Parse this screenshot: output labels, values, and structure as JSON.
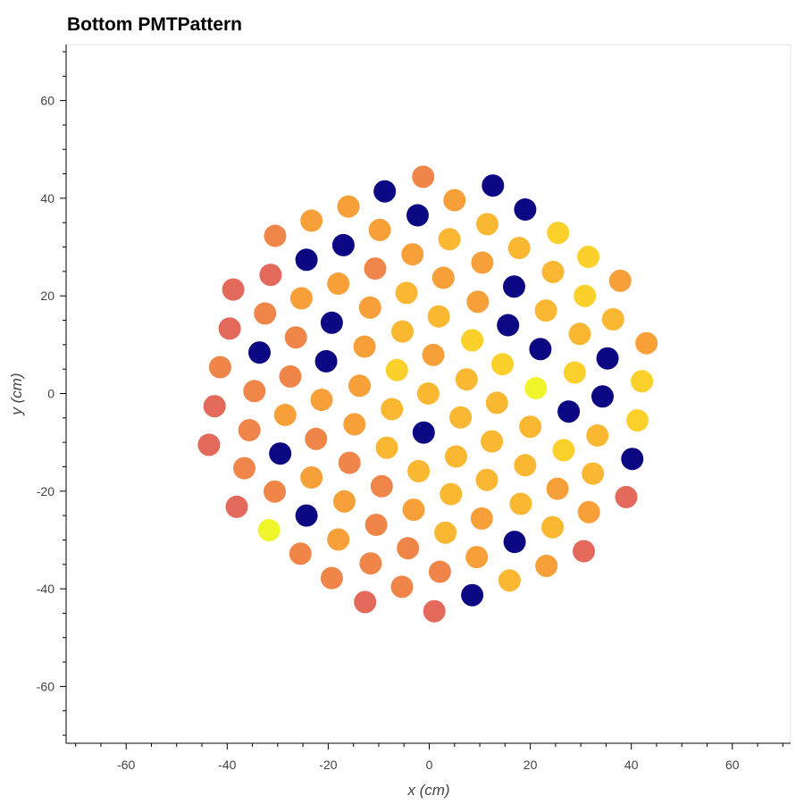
{
  "chart_data": {
    "type": "scatter",
    "title": "Bottom PMTPattern",
    "xlabel": "x (cm)",
    "ylabel": "y (cm)",
    "xlim": [
      -72,
      72
    ],
    "ylim": [
      -72,
      72
    ],
    "xticks": [
      -60,
      -40,
      -20,
      0,
      20,
      40,
      60
    ],
    "yticks": [
      -60,
      -40,
      -20,
      0,
      20,
      40,
      60
    ],
    "grid": false,
    "legend": "none",
    "colors": {
      "c1": "#e3695a",
      "c2": "#f08549",
      "c3": "#f7a03a",
      "c4": "#fab732",
      "c5": "#fbd02b",
      "c6": "#f0f52b",
      "dark": "#0c0783"
    },
    "points": [
      {
        "x": -1.2,
        "y": 44.4,
        "c": "c2"
      },
      {
        "x": -8.8,
        "y": 41.4,
        "c": "dark"
      },
      {
        "x": 12.6,
        "y": 42.6,
        "c": "dark"
      },
      {
        "x": -16,
        "y": 38.3,
        "c": "c3"
      },
      {
        "x": 5,
        "y": 39.6,
        "c": "c3"
      },
      {
        "x": -2.3,
        "y": 36.5,
        "c": "dark"
      },
      {
        "x": 19,
        "y": 37.7,
        "c": "dark"
      },
      {
        "x": -23.3,
        "y": 35.4,
        "c": "c3"
      },
      {
        "x": -9.8,
        "y": 33.5,
        "c": "c3"
      },
      {
        "x": 11.5,
        "y": 34.7,
        "c": "c4"
      },
      {
        "x": -30.5,
        "y": 32.3,
        "c": "c2"
      },
      {
        "x": -17,
        "y": 30.4,
        "c": "dark"
      },
      {
        "x": 4,
        "y": 31.6,
        "c": "c4"
      },
      {
        "x": 25.5,
        "y": 32.9,
        "c": "c5"
      },
      {
        "x": -3.3,
        "y": 28.5,
        "c": "c3"
      },
      {
        "x": 17.8,
        "y": 29.8,
        "c": "c4"
      },
      {
        "x": -24.3,
        "y": 27.4,
        "c": "dark"
      },
      {
        "x": 31.5,
        "y": 28,
        "c": "c5"
      },
      {
        "x": -10.7,
        "y": 25.6,
        "c": "c2"
      },
      {
        "x": 10.5,
        "y": 26.8,
        "c": "c3"
      },
      {
        "x": -31.4,
        "y": 24.3,
        "c": "c1"
      },
      {
        "x": 24.5,
        "y": 24.9,
        "c": "c4"
      },
      {
        "x": 2.8,
        "y": 23.7,
        "c": "c3"
      },
      {
        "x": -38.8,
        "y": 21.3,
        "c": "c1"
      },
      {
        "x": -18,
        "y": 22.5,
        "c": "c3"
      },
      {
        "x": 37.8,
        "y": 23.1,
        "c": "c3"
      },
      {
        "x": 16.8,
        "y": 21.9,
        "c": "dark"
      },
      {
        "x": -4.5,
        "y": 20.6,
        "c": "c4"
      },
      {
        "x": -25.3,
        "y": 19.5,
        "c": "c3"
      },
      {
        "x": 30.8,
        "y": 20,
        "c": "c5"
      },
      {
        "x": 9.6,
        "y": 18.8,
        "c": "c3"
      },
      {
        "x": -11.7,
        "y": 17.6,
        "c": "c3"
      },
      {
        "x": -32.5,
        "y": 16.4,
        "c": "c2"
      },
      {
        "x": 23.1,
        "y": 17,
        "c": "c4"
      },
      {
        "x": 1.9,
        "y": 15.8,
        "c": "c4"
      },
      {
        "x": -19.3,
        "y": 14.5,
        "c": "dark"
      },
      {
        "x": 36.4,
        "y": 15.2,
        "c": "c4"
      },
      {
        "x": 15.6,
        "y": 14,
        "c": "dark"
      },
      {
        "x": -39.5,
        "y": 13.3,
        "c": "c1"
      },
      {
        "x": -5.3,
        "y": 12.7,
        "c": "c4"
      },
      {
        "x": 29.8,
        "y": 12.2,
        "c": "c4"
      },
      {
        "x": -26.4,
        "y": 11.5,
        "c": "c2"
      },
      {
        "x": 8.5,
        "y": 10.9,
        "c": "c5"
      },
      {
        "x": 43,
        "y": 10.3,
        "c": "c3"
      },
      {
        "x": -12.8,
        "y": 9.6,
        "c": "c3"
      },
      {
        "x": 22,
        "y": 9.1,
        "c": "dark"
      },
      {
        "x": -33.6,
        "y": 8.4,
        "c": "dark"
      },
      {
        "x": 0.8,
        "y": 7.9,
        "c": "c3"
      },
      {
        "x": -20.4,
        "y": 6.6,
        "c": "dark"
      },
      {
        "x": 35.3,
        "y": 7.2,
        "c": "dark"
      },
      {
        "x": 14.5,
        "y": 6,
        "c": "c5"
      },
      {
        "x": -41.4,
        "y": 5.4,
        "c": "c2"
      },
      {
        "x": -6.4,
        "y": 4.8,
        "c": "c5"
      },
      {
        "x": 28.8,
        "y": 4.3,
        "c": "c5"
      },
      {
        "x": -27.5,
        "y": 3.5,
        "c": "c2"
      },
      {
        "x": 7.4,
        "y": 2.9,
        "c": "c4"
      },
      {
        "x": 42.1,
        "y": 2.5,
        "c": "c5"
      },
      {
        "x": -13.8,
        "y": 1.6,
        "c": "c3"
      },
      {
        "x": 21.1,
        "y": 1.1,
        "c": "c6"
      },
      {
        "x": -34.6,
        "y": 0.5,
        "c": "c2"
      },
      {
        "x": -0.2,
        "y": 0,
        "c": "c4"
      },
      {
        "x": 34.3,
        "y": -0.6,
        "c": "dark"
      },
      {
        "x": -21.3,
        "y": -1.3,
        "c": "c3"
      },
      {
        "x": 13.4,
        "y": -1.9,
        "c": "c4"
      },
      {
        "x": -42.5,
        "y": -2.6,
        "c": "c1"
      },
      {
        "x": -7.4,
        "y": -3.2,
        "c": "c4"
      },
      {
        "x": 27.6,
        "y": -3.7,
        "c": "dark"
      },
      {
        "x": -28.5,
        "y": -4.4,
        "c": "c3"
      },
      {
        "x": 6.2,
        "y": -4.9,
        "c": "c4"
      },
      {
        "x": 41.2,
        "y": -5.5,
        "c": "c5"
      },
      {
        "x": -14.8,
        "y": -6.3,
        "c": "c3"
      },
      {
        "x": 20,
        "y": -6.8,
        "c": "c4"
      },
      {
        "x": -35.6,
        "y": -7.5,
        "c": "c2"
      },
      {
        "x": -1.1,
        "y": -8,
        "c": "dark"
      },
      {
        "x": 33.3,
        "y": -8.6,
        "c": "c4"
      },
      {
        "x": -22.4,
        "y": -9.3,
        "c": "c2"
      },
      {
        "x": 12.4,
        "y": -9.8,
        "c": "c4"
      },
      {
        "x": -43.6,
        "y": -10.5,
        "c": "c1"
      },
      {
        "x": -8.4,
        "y": -11.1,
        "c": "c4"
      },
      {
        "x": 26.6,
        "y": -11.6,
        "c": "c5"
      },
      {
        "x": -29.5,
        "y": -12.3,
        "c": "dark"
      },
      {
        "x": 5.3,
        "y": -12.9,
        "c": "c4"
      },
      {
        "x": 40.2,
        "y": -13.4,
        "c": "dark"
      },
      {
        "x": -15.8,
        "y": -14.2,
        "c": "c2"
      },
      {
        "x": 19,
        "y": -14.7,
        "c": "c4"
      },
      {
        "x": -36.6,
        "y": -15.3,
        "c": "c2"
      },
      {
        "x": -2.1,
        "y": -15.9,
        "c": "c4"
      },
      {
        "x": 32.4,
        "y": -16.4,
        "c": "c4"
      },
      {
        "x": -23.3,
        "y": -17.2,
        "c": "c3"
      },
      {
        "x": 11.4,
        "y": -17.7,
        "c": "c4"
      },
      {
        "x": -9.4,
        "y": -19,
        "c": "c2"
      },
      {
        "x": 25.4,
        "y": -19.5,
        "c": "c3"
      },
      {
        "x": -30.6,
        "y": -20.1,
        "c": "c2"
      },
      {
        "x": 4.3,
        "y": -20.6,
        "c": "c4"
      },
      {
        "x": 39,
        "y": -21.2,
        "c": "c1"
      },
      {
        "x": -16.8,
        "y": -22.1,
        "c": "c3"
      },
      {
        "x": 18.1,
        "y": -22.6,
        "c": "c4"
      },
      {
        "x": -38.1,
        "y": -23.2,
        "c": "c1"
      },
      {
        "x": -3.1,
        "y": -23.8,
        "c": "c3"
      },
      {
        "x": 31.6,
        "y": -24.3,
        "c": "c3"
      },
      {
        "x": -24.3,
        "y": -25,
        "c": "dark"
      },
      {
        "x": 10.4,
        "y": -25.6,
        "c": "c3"
      },
      {
        "x": -10.5,
        "y": -26.9,
        "c": "c2"
      },
      {
        "x": 24.4,
        "y": -27.4,
        "c": "c4"
      },
      {
        "x": -31.7,
        "y": -28,
        "c": "c6"
      },
      {
        "x": 3.2,
        "y": -28.5,
        "c": "c4"
      },
      {
        "x": -18,
        "y": -29.9,
        "c": "c3"
      },
      {
        "x": 16.9,
        "y": -30.4,
        "c": "dark"
      },
      {
        "x": -4.2,
        "y": -31.7,
        "c": "c2"
      },
      {
        "x": 30.6,
        "y": -32.3,
        "c": "c1"
      },
      {
        "x": -25.5,
        "y": -32.8,
        "c": "c2"
      },
      {
        "x": 9.4,
        "y": -33.5,
        "c": "c3"
      },
      {
        "x": -11.6,
        "y": -34.8,
        "c": "c2"
      },
      {
        "x": 23.2,
        "y": -35.3,
        "c": "c3"
      },
      {
        "x": 2.1,
        "y": -36.5,
        "c": "c2"
      },
      {
        "x": -19.3,
        "y": -37.8,
        "c": "c2"
      },
      {
        "x": 15.9,
        "y": -38.3,
        "c": "c4"
      },
      {
        "x": -5.4,
        "y": -39.6,
        "c": "c2"
      },
      {
        "x": 8.5,
        "y": -41.3,
        "c": "dark"
      },
      {
        "x": -12.7,
        "y": -42.7,
        "c": "c1"
      },
      {
        "x": 1,
        "y": -44.6,
        "c": "c1"
      }
    ]
  }
}
